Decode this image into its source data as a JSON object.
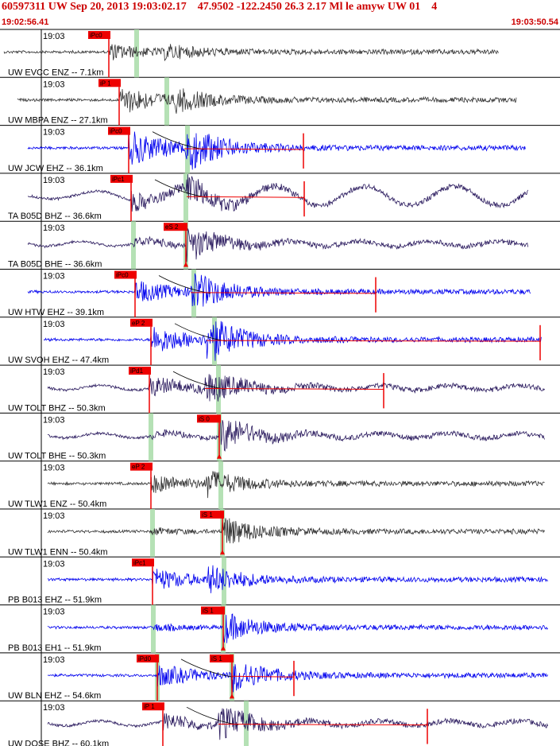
{
  "header": {
    "title": "60597311 UW Sep 20, 2013 19:03:02.17    47.9502 -122.2450 26.3 2.17 Ml le amyw UW 01    4",
    "start_time": "19:02:56.41",
    "end_time": "19:03:50.54"
  },
  "colors": {
    "header_red": "#cc0000",
    "trace_gray": "#333333",
    "trace_blue": "#0000ee",
    "trace_navy": "#2a1a5e",
    "pick_red": "#ee0000",
    "phase_green": "#a8dca8"
  },
  "chart_data": {
    "type": "seismogram",
    "time_tick_label": "19:03",
    "traces": [
      {
        "label": "UW EVCC ENZ -- 7.1km",
        "color": "gray",
        "pick": "iPc0",
        "s_pick": ""
      },
      {
        "label": "UW MBPA ENZ -- 27.1km",
        "color": "gray",
        "pick": "iP 1",
        "s_pick": ""
      },
      {
        "label": "UW JCW EHZ -- 36.1km",
        "color": "blue",
        "pick": "iPc0",
        "s_pick": ""
      },
      {
        "label": "TA B05D BHZ -- 36.6km",
        "color": "navy",
        "pick": "iPc1",
        "s_pick": ""
      },
      {
        "label": "TA B05D BHE -- 36.6km",
        "color": "navy",
        "pick": "",
        "s_pick": "eS 2"
      },
      {
        "label": "UW HTW EHZ -- 39.1km",
        "color": "blue",
        "pick": "iPc0",
        "s_pick": ""
      },
      {
        "label": "UW SVOH EHZ -- 47.4km",
        "color": "blue",
        "pick": "eP 2",
        "s_pick": ""
      },
      {
        "label": "UW TOLT BHZ -- 50.3km",
        "color": "navy",
        "pick": "iPd1",
        "s_pick": ""
      },
      {
        "label": "UW TOLT BHE -- 50.3km",
        "color": "navy",
        "pick": "",
        "s_pick": "iS 0"
      },
      {
        "label": "UW TLW1 ENZ -- 50.4km",
        "color": "gray",
        "pick": "eP 2",
        "s_pick": ""
      },
      {
        "label": "UW TLW1 ENN -- 50.4km",
        "color": "gray",
        "pick": "",
        "s_pick": "iS 1"
      },
      {
        "label": "PB B013 EHZ -- 51.9km",
        "color": "blue",
        "pick": "iPc1",
        "s_pick": ""
      },
      {
        "label": "PB B013 EH1 -- 51.9km",
        "color": "blue",
        "pick": "",
        "s_pick": "iS 1"
      },
      {
        "label": "UW BLN EHZ -- 54.6km",
        "color": "blue",
        "pick": "iPd0",
        "s_pick": "iS 1"
      },
      {
        "label": "UW DOSE BHZ -- 60.1km",
        "color": "navy",
        "pick": "iP 1",
        "s_pick": ""
      }
    ]
  }
}
